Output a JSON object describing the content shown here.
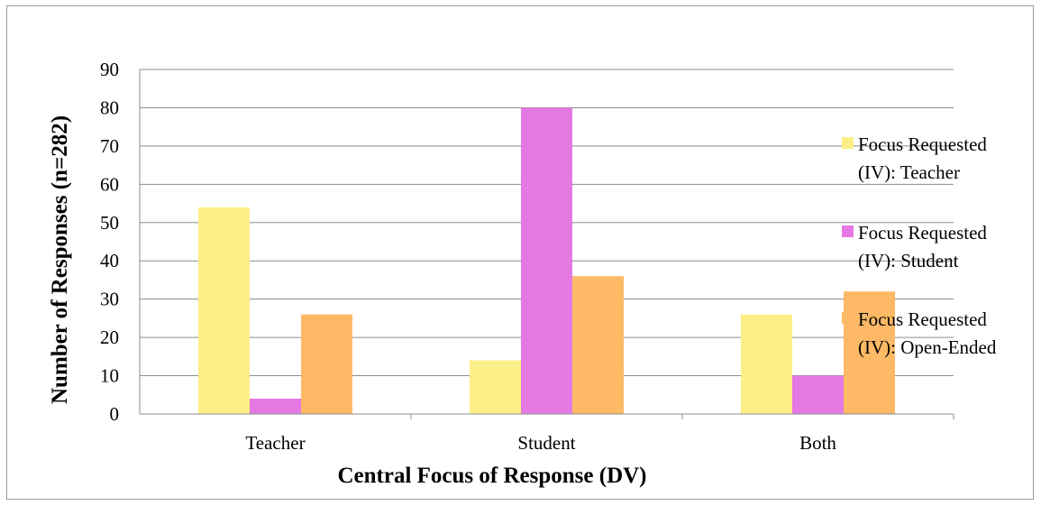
{
  "chart_data": {
    "type": "bar",
    "categories": [
      "Teacher",
      "Student",
      "Both"
    ],
    "series": [
      {
        "name": "Focus Requested (IV): Teacher",
        "name_lines": [
          "Focus Requested",
          "(IV): Teacher"
        ],
        "color": "#fdef88",
        "values": [
          54,
          14,
          26
        ]
      },
      {
        "name": "Focus Requested (IV): Student",
        "name_lines": [
          "Focus Requested",
          "(IV): Student"
        ],
        "color": "#e579e4",
        "values": [
          4,
          80,
          10
        ]
      },
      {
        "name": "Focus Requested (IV): Open-Ended",
        "name_lines": [
          "Focus Requested",
          "(IV): Open-Ended"
        ],
        "color": "#fdb966",
        "values": [
          26,
          36,
          32
        ]
      }
    ],
    "xlabel": "Central Focus of Response (DV)",
    "ylabel": "Number of Responses (n=282)",
    "ylim": [
      0,
      90
    ],
    "yticks": [
      0,
      10,
      20,
      30,
      40,
      50,
      60,
      70,
      80,
      90
    ],
    "grid": true,
    "legend_position": "right"
  }
}
